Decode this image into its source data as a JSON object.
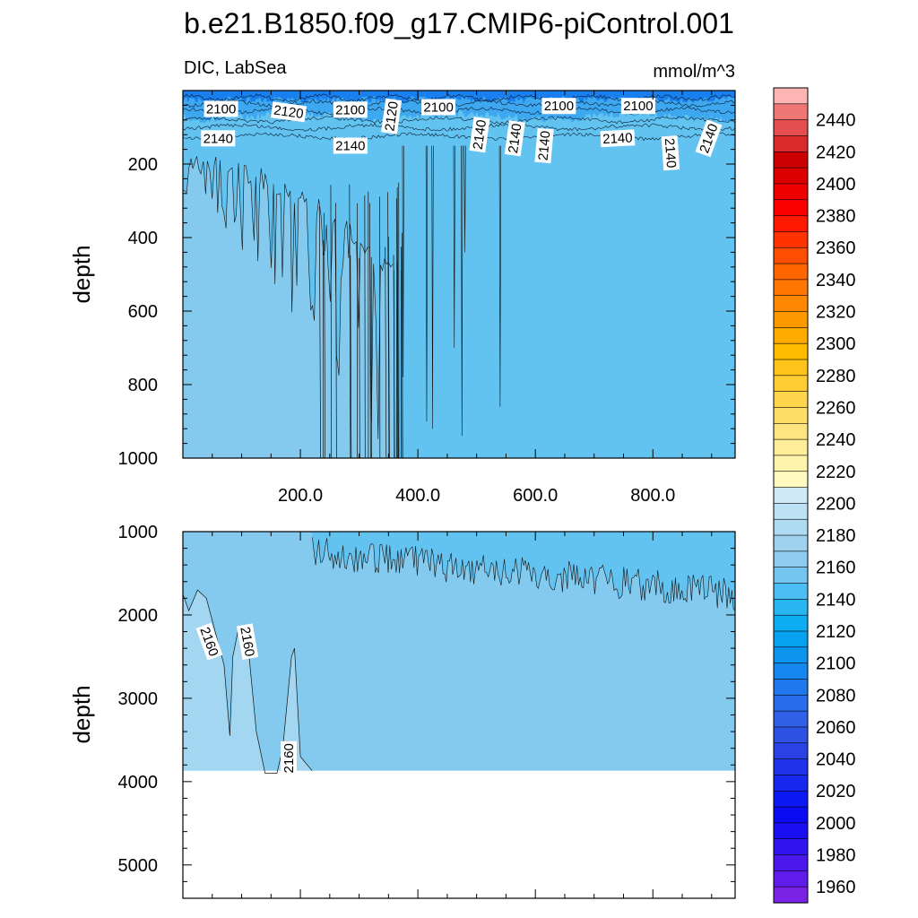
{
  "title": "b.e21.B1850.f09_g17.CMIP6-piControl.001",
  "chart_data": {
    "type": "heatmap",
    "variable": "DIC, LabSea",
    "units": "mmol/m^3",
    "ylabel": "depth",
    "x_tick_labels": [
      "200.0",
      "400.0",
      "600.0",
      "800.0"
    ],
    "x_ticks": [
      200,
      400,
      600,
      800
    ],
    "xlim": [
      0,
      940
    ],
    "panels": [
      {
        "name": "upper",
        "ylim": [
          1000,
          0
        ],
        "y_ticks": [
          200,
          400,
          600,
          800,
          1000
        ],
        "y_tick_labels": [
          "200",
          "400",
          "600",
          "800",
          "1000"
        ],
        "shading": [
          {
            "range": [
              2130,
              2140
            ],
            "color": "#62c3f1",
            "depth": [
              100,
              1000
            ]
          },
          {
            "range": [
              2140,
              2150
            ],
            "color": "#84caee",
            "depth": [
              170,
              1000
            ],
            "x_extent": [
              0,
              360
            ]
          },
          {
            "range": [
              2080,
              2130
            ],
            "color": "#2a8fef",
            "depth": [
              0,
              120
            ]
          }
        ],
        "contour_labels": [
          {
            "text": "2100",
            "x": 65,
            "y": 50,
            "angle": 0
          },
          {
            "text": "2120",
            "x": 180,
            "y": 58,
            "angle": 8
          },
          {
            "text": "2100",
            "x": 285,
            "y": 52,
            "angle": 0
          },
          {
            "text": "2120",
            "x": 355,
            "y": 70,
            "angle": -82
          },
          {
            "text": "2100",
            "x": 435,
            "y": 45,
            "angle": 0
          },
          {
            "text": "2100",
            "x": 640,
            "y": 42,
            "angle": 0
          },
          {
            "text": "2100",
            "x": 775,
            "y": 42,
            "angle": 0
          },
          {
            "text": "2140",
            "x": 60,
            "y": 130,
            "angle": 0
          },
          {
            "text": "2140",
            "x": 285,
            "y": 150,
            "angle": 0
          },
          {
            "text": "2140",
            "x": 505,
            "y": 120,
            "angle": -82
          },
          {
            "text": "2140",
            "x": 565,
            "y": 130,
            "angle": -82
          },
          {
            "text": "2140",
            "x": 615,
            "y": 150,
            "angle": -85
          },
          {
            "text": "2140",
            "x": 740,
            "y": 130,
            "angle": -3
          },
          {
            "text": "2140",
            "x": 830,
            "y": 170,
            "angle": 86
          },
          {
            "text": "2140",
            "x": 895,
            "y": 130,
            "angle": -70
          }
        ]
      },
      {
        "name": "lower",
        "ylim": [
          5400,
          1000
        ],
        "y_ticks": [
          1000,
          2000,
          3000,
          4000,
          5000
        ],
        "y_tick_labels": [
          "1000",
          "2000",
          "3000",
          "4000",
          "5000"
        ],
        "seafloor_depth": 3870,
        "shading": [
          {
            "range": [
              2130,
              2140
            ],
            "color": "#62c3f1",
            "depth": [
              1000,
              2000
            ]
          },
          {
            "range": [
              2140,
              2150
            ],
            "color": "#84caee",
            "depth": [
              1500,
              3870
            ]
          },
          {
            "range": [
              2150,
              2160
            ],
            "color": "#a3d6f0",
            "depth": [
              1800,
              3870
            ],
            "x_extent": [
              0,
              200
            ]
          }
        ],
        "contour_labels": [
          {
            "text": "2160",
            "x": 45,
            "y": 2320,
            "angle": 70
          },
          {
            "text": "2160",
            "x": 110,
            "y": 2320,
            "angle": 80
          },
          {
            "text": "2160",
            "x": 180,
            "y": 3720,
            "angle": -90
          }
        ]
      }
    ],
    "colorbar": {
      "labels": [
        "2440",
        "2420",
        "2400",
        "2380",
        "2360",
        "2340",
        "2320",
        "2300",
        "2280",
        "2260",
        "2240",
        "2220",
        "2200",
        "2180",
        "2160",
        "2140",
        "2120",
        "2100",
        "2080",
        "2060",
        "2040",
        "2020",
        "2000",
        "1980",
        "1960"
      ],
      "colors": [
        "#fdb5b4",
        "#ee7775",
        "#e54e4e",
        "#d92b2b",
        "#cc0000",
        "#dd0000",
        "#ec0000",
        "#fb0000",
        "#ff1900",
        "#ff3300",
        "#ff4d00",
        "#ff6600",
        "#ff7700",
        "#ff8800",
        "#ff9900",
        "#ffaa00",
        "#ffbb00",
        "#ffc41a",
        "#ffcc33",
        "#ffd54d",
        "#ffdd66",
        "#ffe580",
        "#ffee99",
        "#fff4ab",
        "#fffbc0",
        "#cfe9f7",
        "#bde2f5",
        "#aedaf2",
        "#9ed2ef",
        "#8ecbee",
        "#74c6f0",
        "#4bbef3",
        "#28b6f3",
        "#0eacf2",
        "#06a2f0",
        "#0d94ef",
        "#1687ee",
        "#1f79ed",
        "#286bec",
        "#3060e8",
        "#2e52e4",
        "#2a42e5",
        "#1f34ea",
        "#1627ee",
        "#0c18f2",
        "#0a0bf3",
        "#1a0ff3",
        "#3114ef",
        "#4a18ec",
        "#5f1cea",
        "#7a22e6"
      ]
    }
  }
}
